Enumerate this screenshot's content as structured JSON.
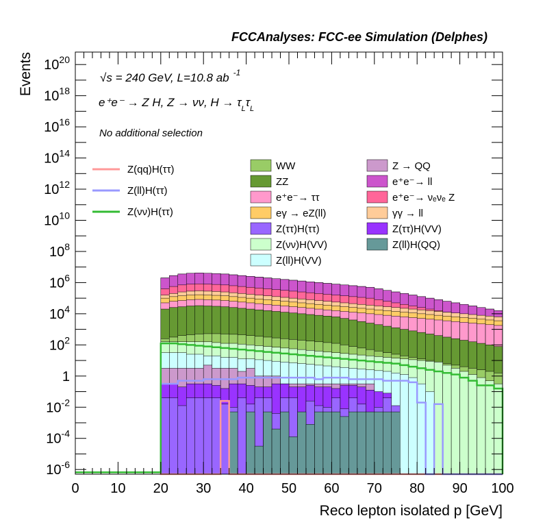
{
  "header": {
    "title": "FCCAnalyses: FCC-ee Simulation (Delphes)"
  },
  "annotations": {
    "energy_sqrt": "√s",
    "energy_rest": " = 240 GeV, L=10.8 ab",
    "energy_exp": "-1",
    "process": "e⁺e⁻ → Z H, Z → νν, H → τ",
    "process_sub1": "L",
    "process_tau2": "τ",
    "process_sub2": "L",
    "selection": "No additional selection"
  },
  "chart_data": {
    "type": "histogram",
    "ylog": true,
    "xlabel": "Reco lepton isolated p [GeV]",
    "ylabel": "Events",
    "xlim": [
      0,
      100
    ],
    "ylim_exp": [
      -6.3,
      20.8
    ],
    "x_ticks": [
      "0",
      "10",
      "20",
      "30",
      "40",
      "50",
      "60",
      "70",
      "80",
      "90",
      "100"
    ],
    "y_ticks": [
      {
        "base": "10",
        "exp": "-6",
        "v": -6
      },
      {
        "base": "10",
        "exp": "-4",
        "v": -4
      },
      {
        "base": "10",
        "exp": "-2",
        "v": -2
      },
      {
        "base": "1",
        "exp": "",
        "v": 0
      },
      {
        "base": "10",
        "exp": "2",
        "v": 2
      },
      {
        "base": "10",
        "exp": "4",
        "v": 4
      },
      {
        "base": "10",
        "exp": "6",
        "v": 6
      },
      {
        "base": "10",
        "exp": "8",
        "v": 8
      },
      {
        "base": "10",
        "exp": "10",
        "v": 10
      },
      {
        "base": "10",
        "exp": "12",
        "v": 12
      },
      {
        "base": "10",
        "exp": "14",
        "v": 14
      },
      {
        "base": "10",
        "exp": "16",
        "v": 16
      },
      {
        "base": "10",
        "exp": "18",
        "v": 18
      },
      {
        "base": "10",
        "exp": "20",
        "v": 20
      }
    ],
    "bin_start": 20,
    "bin_width": 2,
    "stacked_log10_top": [
      {
        "name": "Z → QQ",
        "color": "#cc99cc",
        "values": [
          6.3,
          6.45,
          6.55,
          6.6,
          6.62,
          6.6,
          6.58,
          6.55,
          6.5,
          6.45,
          6.4,
          6.35,
          6.3,
          6.25,
          6.2,
          6.15,
          6.1,
          6.05,
          6.0,
          5.95,
          5.9,
          5.85,
          5.8,
          5.75,
          5.7,
          5.6,
          5.5,
          5.4,
          5.3,
          5.2,
          5.1,
          5.0,
          4.9,
          4.8,
          4.7,
          4.6,
          4.5,
          4.4,
          4.3,
          4.2
        ]
      },
      {
        "name": "e⁺e⁻→ ll",
        "color": "#cc55cc",
        "values": [
          6.3,
          6.45,
          6.55,
          6.6,
          6.62,
          6.6,
          6.58,
          6.55,
          6.5,
          6.45,
          6.4,
          6.35,
          6.3,
          6.25,
          6.2,
          6.15,
          6.1,
          6.05,
          6.0,
          5.95,
          5.9,
          5.85,
          5.8,
          5.75,
          5.7,
          5.6,
          5.5,
          5.4,
          5.3,
          5.2,
          5.1,
          5.0,
          4.9,
          4.8,
          4.7,
          4.6,
          4.5,
          4.4,
          4.3,
          4.2
        ]
      },
      {
        "name": "e⁺e⁻→ νₑνₑ Z",
        "color": "#ff6699",
        "values": [
          5.6,
          5.75,
          5.85,
          5.9,
          5.92,
          5.9,
          5.88,
          5.85,
          5.8,
          5.75,
          5.7,
          5.65,
          5.6,
          5.55,
          5.5,
          5.45,
          5.4,
          5.35,
          5.3,
          5.25,
          5.2,
          5.15,
          5.1,
          5.05,
          5.0,
          4.9,
          4.8,
          4.7,
          4.6,
          4.5,
          4.4,
          4.3,
          4.2,
          4.1,
          4.0,
          3.9,
          3.8,
          3.7,
          3.6,
          3.5
        ]
      },
      {
        "name": "γγ → ll",
        "color": "#ffcc99",
        "values": [
          5.2,
          5.3,
          5.4,
          5.45,
          5.47,
          5.45,
          5.43,
          5.4,
          5.35,
          5.3,
          5.25,
          5.2,
          5.15,
          5.1,
          5.05,
          5.0,
          4.95,
          4.9,
          4.85,
          4.8,
          4.75,
          4.7,
          4.65,
          4.6,
          4.55,
          4.5,
          4.45,
          4.4,
          4.35,
          4.3,
          4.25,
          4.2,
          4.15,
          4.1,
          4.05,
          4.0,
          3.95,
          3.9,
          3.85,
          3.8
        ]
      },
      {
        "name": "eγ → eZ(ll)",
        "color": "#ffcc66",
        "values": [
          5.0,
          5.1,
          5.15,
          5.2,
          5.22,
          5.2,
          5.18,
          5.15,
          5.1,
          5.05,
          5.0,
          4.95,
          4.9,
          4.85,
          4.8,
          4.75,
          4.7,
          4.65,
          4.6,
          4.55,
          4.5,
          4.45,
          4.4,
          4.35,
          4.3,
          4.25,
          4.2,
          4.15,
          4.1,
          4.05,
          4.0,
          3.95,
          3.9,
          3.85,
          3.8,
          3.75,
          3.7,
          3.65,
          3.6,
          3.55
        ]
      },
      {
        "name": "e⁺e⁻→ ττ",
        "color": "#ff99cc",
        "values": [
          4.7,
          4.8,
          4.85,
          4.9,
          4.92,
          4.9,
          4.88,
          4.85,
          4.8,
          4.75,
          4.7,
          4.65,
          4.6,
          4.55,
          4.5,
          4.45,
          4.4,
          4.35,
          4.3,
          4.25,
          4.2,
          4.15,
          4.1,
          4.05,
          4.0,
          3.95,
          3.9,
          3.85,
          3.8,
          3.75,
          3.7,
          3.65,
          3.6,
          3.55,
          3.5,
          3.45,
          3.4,
          3.35,
          3.3,
          3.25
        ]
      },
      {
        "name": "ZZ",
        "color": "#669933",
        "values": [
          4.3,
          4.4,
          4.45,
          4.5,
          4.52,
          4.5,
          4.48,
          4.45,
          4.4,
          4.35,
          4.3,
          4.25,
          4.2,
          4.15,
          4.1,
          4.05,
          4.0,
          3.95,
          3.9,
          3.85,
          3.8,
          3.7,
          3.6,
          3.5,
          3.4,
          3.3,
          3.2,
          3.1,
          3.0,
          2.9,
          2.8,
          2.7,
          2.6,
          2.5,
          2.4,
          2.3,
          2.2,
          2.1,
          2.0,
          1.9
        ]
      },
      {
        "name": "WW",
        "color": "#99cc66",
        "values": [
          2.4,
          2.5,
          2.6,
          2.65,
          2.7,
          2.72,
          2.72,
          2.7,
          2.68,
          2.65,
          2.6,
          2.55,
          2.5,
          2.45,
          2.4,
          2.35,
          2.3,
          2.25,
          2.2,
          2.15,
          2.1,
          2.0,
          1.9,
          1.8,
          1.7,
          1.6,
          1.5,
          1.4,
          1.3,
          1.2,
          1.1,
          1.0,
          0.9,
          0.8,
          0.7,
          0.6,
          0.5,
          0.4,
          0.3,
          0.2
        ]
      },
      {
        "name": "Z(νν)H(VV)",
        "color": "#ccffcc",
        "values": [
          2.2,
          2.2,
          2.2,
          2.2,
          2.2,
          2.2,
          2.15,
          2.1,
          2.1,
          2.05,
          2.0,
          1.95,
          1.9,
          1.85,
          1.8,
          1.75,
          1.7,
          1.65,
          1.6,
          1.55,
          1.5,
          1.45,
          1.4,
          1.35,
          1.3,
          1.25,
          1.2,
          1.15,
          1.1,
          1.05,
          1.0,
          0.95,
          0.9,
          0.7,
          0.5,
          0.3,
          0.1,
          -0.1,
          -0.3,
          -0.5
        ]
      },
      {
        "name": "Z(ll)H(VV)",
        "color": "#ccffff",
        "values": [
          1.5,
          1.5,
          1.5,
          1.4,
          1.4,
          1.3,
          1.3,
          1.2,
          1.2,
          1.1,
          1.1,
          1.05,
          1.0,
          0.95,
          0.9,
          0.85,
          0.8,
          0.75,
          0.7,
          0.65,
          0.6,
          0.55,
          0.5,
          0.45,
          0.4,
          0.35,
          0.3,
          0.2,
          0.1,
          -0.1,
          -0.5,
          -1.0,
          -6.3,
          -6.3,
          -6.3,
          -6.3,
          -6.3,
          -6.3,
          -6.3,
          -6.3
        ]
      }
    ],
    "signal_lines": [
      {
        "name": "Z(qq)H(ττ)",
        "color": "#ff9999",
        "values": [
          -6.3,
          -6.3,
          -6.3,
          -6.3,
          -6.3,
          -6.3,
          -6.3,
          -1.6,
          -6.3,
          -6.3,
          -6.3,
          -6.3,
          -6.3,
          -6.3,
          -6.3,
          -6.3,
          -6.3,
          -6.3,
          -6.3,
          -6.3,
          -6.3,
          -6.3,
          -6.3,
          -6.3,
          -6.3,
          -6.3,
          -6.3,
          -6.3,
          -6.3,
          -6.3,
          -6.3,
          -6.3,
          -6.3,
          -6.3,
          -6.3,
          -6.3,
          -6.3,
          -6.3,
          -6.3,
          -6.3
        ]
      },
      {
        "name": "Z(ll)H(ττ)",
        "color": "#9999ff",
        "values": [
          -0.5,
          -0.5,
          -0.3,
          -0.3,
          -0.3,
          -0.2,
          -0.2,
          -0.2,
          -0.2,
          -0.1,
          -0.1,
          -0.1,
          -0.1,
          -0.1,
          -0.1,
          -0.1,
          -0.1,
          -0.1,
          -0.2,
          -0.1,
          -0.1,
          -0.1,
          -0.2,
          -0.2,
          -0.2,
          -0.2,
          -0.3,
          -0.3,
          -0.3,
          -0.4,
          -1.7,
          -6.3,
          -1.8,
          -6.3,
          -6.3,
          -6.3,
          -6.3,
          -6.3,
          -6.3,
          -6.3
        ]
      },
      {
        "name": "Z(νν)H(ττ)",
        "color": "#33bb33",
        "values": [
          2.1,
          2.1,
          2.05,
          2.0,
          1.95,
          1.9,
          1.85,
          1.8,
          1.75,
          1.7,
          1.65,
          1.6,
          1.55,
          1.5,
          1.45,
          1.4,
          1.35,
          1.3,
          1.25,
          1.2,
          1.15,
          1.1,
          1.05,
          1.0,
          0.95,
          0.9,
          0.85,
          0.8,
          0.7,
          0.6,
          0.5,
          0.4,
          0.3,
          0.2,
          0.1,
          -0.1,
          -0.3,
          -0.6,
          -0.6,
          -0.8
        ]
      }
    ],
    "legend_signals": [
      {
        "name": "Z(qq)H(ττ)",
        "color": "#ff9999"
      },
      {
        "name": "Z(ll)H(ττ)",
        "color": "#9999ff"
      },
      {
        "name": "Z(νν)H(ττ)",
        "color": "#33bb33"
      }
    ],
    "legend_backgrounds": [
      {
        "name": "WW",
        "color": "#99cc66"
      },
      {
        "name": "Z → QQ",
        "color": "#cc99cc"
      },
      {
        "name": "ZZ",
        "color": "#669933"
      },
      {
        "name": "e⁺e⁻→ ll",
        "color": "#cc55cc"
      },
      {
        "name": "e⁺e⁻→ ττ",
        "color": "#ff99cc"
      },
      {
        "name": "e⁺e⁻→ νₑνₑ Z",
        "color": "#ff6699"
      },
      {
        "name": "eγ → eZ(ll)",
        "color": "#ffcc66"
      },
      {
        "name": "γγ → ll",
        "color": "#ffcc99"
      },
      {
        "name": "Z(ττ)H(ττ)",
        "color": "#9966ff"
      },
      {
        "name": "Z(ττ)H(VV)",
        "color": "#9933ff"
      },
      {
        "name": "Z(νν)H(VV)",
        "color": "#ccffcc"
      },
      {
        "name": "Z(ll)H(QQ)",
        "color": "#669999"
      },
      {
        "name": "Z(ll)H(VV)",
        "color": "#ccffff"
      }
    ],
    "overlay_bins": {
      "Z → QQ low": {
        "color": "#cc99cc",
        "values": [
          0.5,
          0.5,
          0.5,
          0.5,
          0.5,
          0.7,
          0.5,
          0.5,
          0.5,
          0.3,
          0.5,
          0.0,
          0.0,
          0.0,
          -0.5,
          -0.5,
          -0.5,
          -0.5,
          -0.5,
          -0.5,
          -0.5,
          -0.5,
          -0.5,
          -0.5,
          -0.5,
          -6.3,
          -6.3,
          -6.3,
          -6.3,
          -6.3,
          -6.3,
          -6.3,
          -6.3,
          -6.3,
          -6.3,
          -6.3,
          -6.3,
          -6.3,
          -6.3,
          -6.3
        ]
      },
      "Z(ττ)H(VV)": {
        "color": "#9933ff",
        "values": [
          -0.5,
          -0.5,
          -0.7,
          -0.5,
          -0.5,
          -0.5,
          -0.6,
          -0.8,
          -0.5,
          -0.5,
          -0.6,
          -0.7,
          -0.7,
          -0.5,
          -0.5,
          -0.7,
          -0.7,
          -0.6,
          -0.7,
          -0.7,
          -0.8,
          -0.6,
          -0.6,
          -0.7,
          -0.9,
          -1.0,
          -1.1,
          -6.3,
          -6.3,
          -6.3,
          -6.3,
          -6.3,
          -6.3,
          -6.3,
          -6.3,
          -6.3,
          -6.3,
          -6.3,
          -6.3,
          -6.3
        ]
      },
      "Z(ττ)H(ττ)": {
        "color": "#9966ff",
        "values": [
          -1.4,
          -1.4,
          -1.9,
          -1.4,
          -1.4,
          -1.4,
          -1.4,
          -1.8,
          -2.0,
          -1.4,
          -1.8,
          -1.4,
          -1.4,
          -2.4,
          -1.4,
          -1.4,
          -2.4,
          -1.6,
          -1.9,
          -2.0,
          -1.4,
          -2.1,
          -1.4,
          -1.8,
          -2.4,
          -2.0,
          -1.4,
          -1.9,
          -6.3,
          -6.3,
          -6.3,
          -6.3,
          -6.3,
          -6.3,
          -6.3,
          -6.3,
          -6.3,
          -6.3,
          -6.3,
          -6.3
        ]
      },
      "Z(ll)H(QQ)": {
        "color": "#669999",
        "values": [
          -6.3,
          -6.3,
          -6.3,
          -6.3,
          -6.3,
          -6.3,
          -6.3,
          -6.3,
          -2.3,
          -6.3,
          -2.3,
          -4.5,
          -2.3,
          -3.4,
          -2.3,
          -3.9,
          -2.3,
          -3.1,
          -2.3,
          -2.3,
          -2.3,
          -2.6,
          -2.3,
          -2.3,
          -2.3,
          -2.3,
          -2.3,
          -2.3,
          -6.3,
          -6.3,
          -6.3,
          -6.3,
          -6.3,
          -6.3,
          -6.3,
          -6.3,
          -6.3,
          -6.3,
          -6.3,
          -6.3
        ]
      }
    }
  }
}
